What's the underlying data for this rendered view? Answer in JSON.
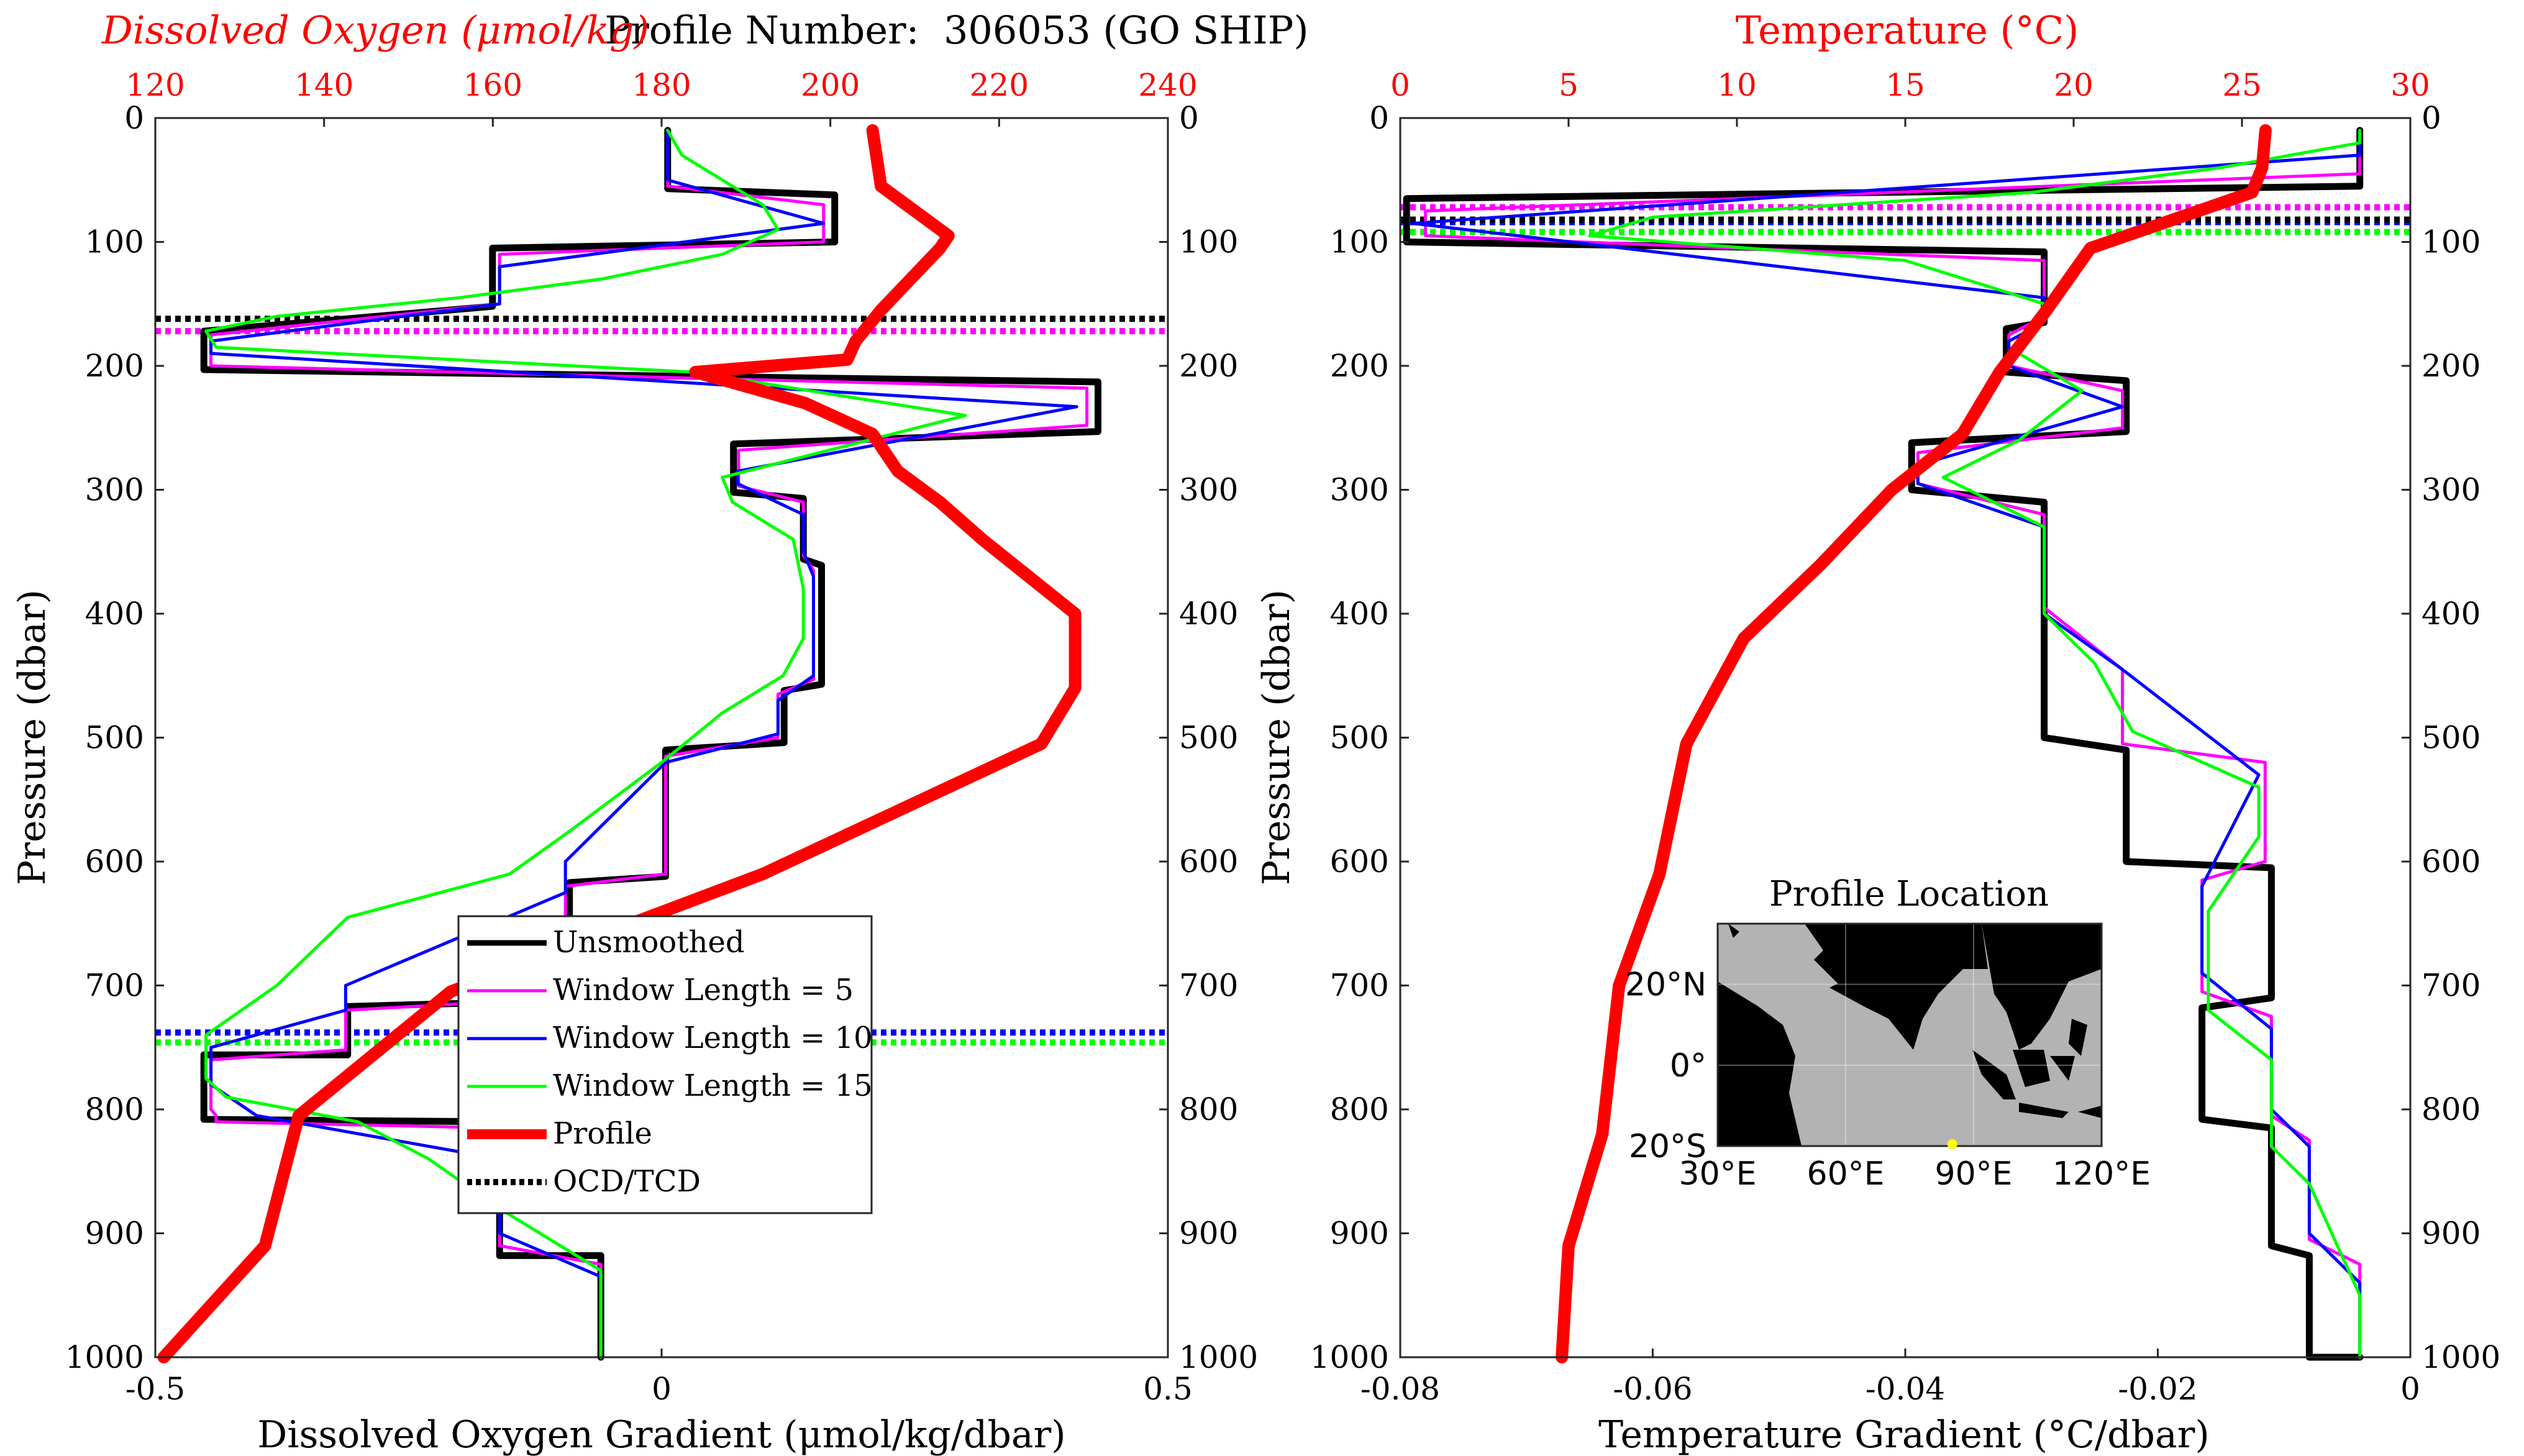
{
  "figure": {
    "title": "Profile Number:  306053 (GO SHIP)",
    "colors": {
      "unsmoothed": "#000000",
      "window5": "#ff00ff",
      "window10": "#0000ff",
      "window15": "#00ff00",
      "profile": "#ff0000",
      "ocd_tcd": "#000000",
      "top_axis": "#ff0000",
      "land": "#000000",
      "ocean": "#b3b3b3",
      "marker": "#ffff00"
    }
  },
  "chart_data": [
    {
      "type": "line",
      "panel": "left",
      "top_title": "Dissolved Oxygen (μmol/kg)",
      "xlabel": "Dissolved Oxygen Gradient (μmol/kg/dbar)",
      "ylabel": "Pressure (dbar)",
      "xlim": [
        -0.5,
        0.5
      ],
      "xticks": [
        -0.5,
        0,
        0.5
      ],
      "xticklabels": [
        "-0.5",
        "0",
        "0.5"
      ],
      "top_xlim": [
        120,
        240
      ],
      "top_xticks": [
        120,
        140,
        160,
        180,
        200,
        220,
        240
      ],
      "top_xticklabels": [
        "120",
        "140",
        "160",
        "180",
        "200",
        "220",
        "240"
      ],
      "ylim": [
        0,
        1000
      ],
      "y_reversed": true,
      "yticks": [
        0,
        100,
        200,
        300,
        400,
        500,
        600,
        700,
        800,
        900,
        1000
      ],
      "yticklabels": [
        "0",
        "100",
        "200",
        "300",
        "400",
        "500",
        "600",
        "700",
        "800",
        "900",
        "1000"
      ],
      "legend": {
        "position": "lower-center",
        "entries": [
          "Unsmoothed",
          "Window Length = 5",
          "Window Length = 10",
          "Window Length = 15",
          "Profile",
          "OCD/TCD"
        ]
      },
      "series": [
        {
          "name": "Unsmoothed",
          "x": [
            0.006,
            0.006,
            0.171,
            0.171,
            -0.167,
            -0.167,
            -0.452,
            -0.452,
            0.431,
            0.431,
            0.071,
            0.071,
            0.14,
            0.14,
            0.158,
            0.158,
            0.121,
            0.121,
            0.004,
            0.004,
            -0.091,
            -0.091,
            -0.31,
            -0.31,
            -0.452,
            -0.452,
            -0.452,
            -0.452,
            -0.16,
            -0.16,
            -0.16,
            -0.16,
            -0.06,
            -0.06
          ],
          "y": [
            10,
            57,
            62,
            100,
            105,
            152,
            172,
            203,
            213,
            253,
            263,
            302,
            307,
            356,
            361,
            457,
            462,
            504,
            510,
            612,
            617,
            712,
            717,
            756,
            756,
            803,
            803,
            808,
            810,
            905,
            905,
            918,
            918,
            1000
          ]
        },
        {
          "name": "Window Length = 5",
          "x": [
            0.006,
            0.006,
            0.16,
            0.16,
            -0.16,
            -0.16,
            -0.445,
            -0.445,
            0.42,
            0.42,
            0.076,
            0.076,
            0.14,
            0.14,
            0.15,
            0.15,
            0.115,
            0.115,
            0.004,
            0.004,
            -0.095,
            -0.095,
            -0.312,
            -0.312,
            -0.445,
            -0.445,
            -0.44,
            -0.44,
            -0.16,
            -0.16,
            -0.16,
            -0.06,
            -0.06
          ],
          "y": [
            10,
            55,
            70,
            100,
            110,
            150,
            175,
            200,
            218,
            248,
            268,
            297,
            310,
            353,
            365,
            453,
            465,
            500,
            515,
            610,
            620,
            710,
            720,
            752,
            760,
            800,
            805,
            810,
            815,
            900,
            910,
            925,
            1000
          ]
        },
        {
          "name": "Window Length = 10",
          "x": [
            0.006,
            0.006,
            0.16,
            -0.16,
            -0.16,
            -0.445,
            -0.445,
            0.41,
            0.075,
            0.075,
            0.14,
            0.14,
            0.15,
            0.15,
            0.115,
            0.115,
            0.004,
            -0.095,
            -0.095,
            -0.312,
            -0.312,
            -0.445,
            -0.445,
            -0.4,
            -0.16,
            -0.16,
            -0.06,
            -0.06
          ],
          "y": [
            10,
            50,
            85,
            120,
            150,
            180,
            190,
            233,
            285,
            295,
            320,
            350,
            370,
            450,
            470,
            497,
            520,
            600,
            625,
            700,
            720,
            750,
            780,
            805,
            840,
            900,
            935,
            1000
          ]
        },
        {
          "name": "Window Length = 15",
          "x": [
            0.006,
            0.02,
            0.1,
            0.115,
            0.06,
            -0.06,
            -0.2,
            -0.38,
            -0.45,
            -0.44,
            0.03,
            0.3,
            0.06,
            0.07,
            0.13,
            0.14,
            0.14,
            0.12,
            0.06,
            0.0,
            -0.09,
            -0.15,
            -0.31,
            -0.38,
            -0.45,
            -0.45,
            -0.43,
            -0.3,
            -0.23,
            -0.16,
            -0.06,
            -0.06
          ],
          "y": [
            10,
            30,
            70,
            90,
            110,
            130,
            145,
            160,
            172,
            185,
            205,
            240,
            290,
            310,
            340,
            380,
            420,
            450,
            480,
            520,
            575,
            610,
            645,
            700,
            740,
            775,
            790,
            810,
            840,
            880,
            930,
            1000
          ]
        },
        {
          "name": "Profile",
          "axis": "top",
          "x": [
            205,
            206,
            214,
            213,
            206,
            203,
            202,
            184,
            197,
            205,
            208,
            213,
            218,
            229,
            229,
            225,
            192,
            155,
            137,
            133,
            121
          ],
          "y": [
            10,
            55,
            95,
            105,
            155,
            180,
            195,
            205,
            230,
            255,
            285,
            310,
            340,
            400,
            460,
            505,
            610,
            705,
            805,
            910,
            1000
          ]
        },
        {
          "name": "Window Length = 5 OCD",
          "style": "dotted",
          "x": [
            -0.5,
            0.5
          ],
          "y": [
            172,
            172
          ]
        },
        {
          "name": "OCD/TCD",
          "style": "dotted",
          "x": [
            -0.5,
            0.5
          ],
          "y": [
            162,
            162
          ]
        },
        {
          "name": "Window Length = 10 OCD",
          "style": "dotted",
          "x": [
            -0.5,
            0.5
          ],
          "y": [
            738,
            738
          ]
        },
        {
          "name": "Window Length = 15 OCD",
          "style": "dotted",
          "x": [
            -0.5,
            0.5
          ],
          "y": [
            746,
            746
          ]
        }
      ]
    },
    {
      "type": "line",
      "panel": "right",
      "top_title": "Temperature (°C)",
      "xlabel": "Temperature Gradient (°C/dbar)",
      "ylabel": "Pressure (dbar)",
      "xlim": [
        -0.08,
        0
      ],
      "xticks": [
        -0.08,
        -0.06,
        -0.04,
        -0.02,
        0
      ],
      "xticklabels": [
        "-0.08",
        "-0.06",
        "-0.04",
        "-0.02",
        "0"
      ],
      "top_xlim": [
        0,
        30
      ],
      "top_xticks": [
        0,
        5,
        10,
        15,
        20,
        25,
        30
      ],
      "top_xticklabels": [
        "0",
        "5",
        "10",
        "15",
        "20",
        "25",
        "30"
      ],
      "ylim": [
        0,
        1000
      ],
      "y_reversed": true,
      "yticks": [
        0,
        100,
        200,
        300,
        400,
        500,
        600,
        700,
        800,
        900,
        1000
      ],
      "yticklabels": [
        "0",
        "100",
        "200",
        "300",
        "400",
        "500",
        "600",
        "700",
        "800",
        "900",
        "1000"
      ],
      "series": [
        {
          "name": "Unsmoothed",
          "x": [
            -0.004,
            -0.004,
            -0.0795,
            -0.0795,
            -0.029,
            -0.029,
            -0.032,
            -0.032,
            -0.0225,
            -0.0225,
            -0.0395,
            -0.0395,
            -0.029,
            -0.029,
            -0.029,
            -0.029,
            -0.0225,
            -0.0225,
            -0.011,
            -0.011,
            -0.0165,
            -0.0165,
            -0.011,
            -0.011,
            -0.008,
            -0.008,
            -0.004,
            -0.004
          ],
          "y": [
            10,
            55,
            65,
            100,
            108,
            165,
            170,
            205,
            212,
            253,
            262,
            300,
            310,
            400,
            410,
            500,
            510,
            600,
            605,
            710,
            718,
            808,
            815,
            910,
            918,
            1000,
            1000,
            1000
          ]
        },
        {
          "name": "Window Length = 5",
          "x": [
            -0.004,
            -0.004,
            -0.078,
            -0.078,
            -0.029,
            -0.029,
            -0.0318,
            -0.0318,
            -0.0228,
            -0.0228,
            -0.039,
            -0.039,
            -0.029,
            -0.029,
            -0.0228,
            -0.0228,
            -0.0115,
            -0.0115,
            -0.0165,
            -0.0165,
            -0.011,
            -0.011,
            -0.008,
            -0.008,
            -0.004,
            -0.004
          ],
          "y": [
            10,
            45,
            75,
            95,
            115,
            160,
            175,
            200,
            220,
            250,
            270,
            295,
            320,
            395,
            445,
            505,
            520,
            600,
            615,
            705,
            725,
            805,
            825,
            905,
            925,
            1000
          ]
        },
        {
          "name": "Window Length = 10",
          "x": [
            -0.004,
            -0.004,
            -0.079,
            -0.029,
            -0.029,
            -0.0318,
            -0.0318,
            -0.0228,
            -0.039,
            -0.039,
            -0.029,
            -0.029,
            -0.0228,
            -0.012,
            -0.0165,
            -0.0165,
            -0.011,
            -0.011,
            -0.008,
            -0.008,
            -0.004,
            -0.004
          ],
          "y": [
            10,
            30,
            85,
            145,
            165,
            180,
            200,
            233,
            280,
            295,
            330,
            400,
            445,
            530,
            620,
            690,
            735,
            800,
            830,
            900,
            940,
            1000
          ]
        },
        {
          "name": "Window Length = 15",
          "x": [
            -0.004,
            -0.004,
            -0.015,
            -0.03,
            -0.06,
            -0.065,
            -0.04,
            -0.029,
            -0.031,
            -0.026,
            -0.031,
            -0.037,
            -0.029,
            -0.029,
            -0.025,
            -0.022,
            -0.012,
            -0.012,
            -0.016,
            -0.016,
            -0.011,
            -0.011,
            -0.008,
            -0.004,
            -0.004
          ],
          "y": [
            10,
            20,
            40,
            60,
            80,
            95,
            115,
            150,
            190,
            220,
            260,
            290,
            330,
            400,
            440,
            495,
            540,
            580,
            640,
            720,
            760,
            830,
            860,
            950,
            1000
          ]
        },
        {
          "name": "Profile",
          "axis": "top",
          "x": [
            25.7,
            25.6,
            25.3,
            20.5,
            19.2,
            17.8,
            16.7,
            14.6,
            12.5,
            10.2,
            8.5,
            7.7,
            6.5,
            6.0,
            5.0,
            4.8
          ],
          "y": [
            10,
            40,
            60,
            105,
            155,
            205,
            255,
            300,
            360,
            420,
            505,
            610,
            700,
            820,
            910,
            1000
          ]
        },
        {
          "name": "Window Length = 5 TCD",
          "style": "dotted",
          "x": [
            -0.08,
            0
          ],
          "y": [
            72,
            72
          ]
        },
        {
          "name": "OCD/TCD",
          "style": "dotted",
          "x": [
            -0.08,
            0
          ],
          "y": [
            82,
            82
          ]
        },
        {
          "name": "Window Length = 10 TCD",
          "style": "dotted",
          "x": [
            -0.08,
            0
          ],
          "y": [
            84,
            84
          ]
        },
        {
          "name": "Window Length = 15 TCD",
          "style": "dotted",
          "x": [
            -0.08,
            0
          ],
          "y": [
            92,
            92
          ]
        }
      ]
    }
  ],
  "map": {
    "title": "Profile Location",
    "lon_labels": [
      "30°E",
      "60°E",
      "90°E",
      "120°E"
    ],
    "lon_values": [
      30,
      60,
      90,
      120
    ],
    "lat_labels": [
      "20°N",
      "0°",
      "20°S"
    ],
    "lat_values": [
      20,
      0,
      -20
    ],
    "lon_range": [
      30,
      120
    ],
    "lat_range": [
      -20,
      35
    ],
    "profile_location": {
      "lon": 85,
      "lat": -20
    }
  }
}
